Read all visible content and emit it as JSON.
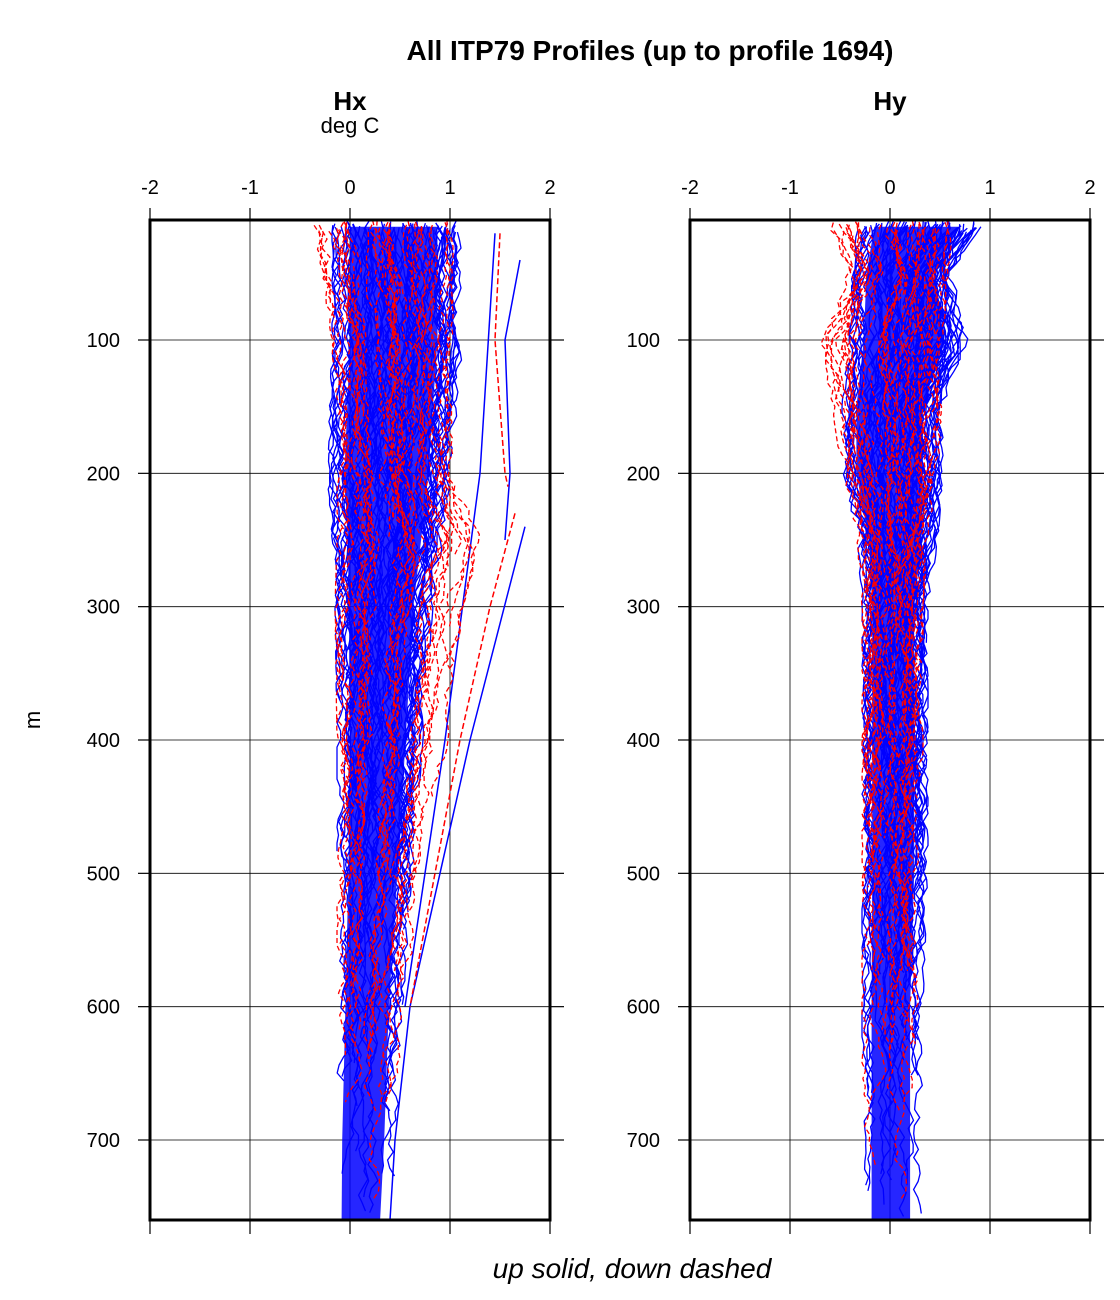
{
  "chart_data": {
    "type": "line",
    "title": "All ITP79 Profiles (up to profile 1694)",
    "ylabel": "m",
    "footer": "up solid, down dashed",
    "ylim": [
      760,
      10
    ],
    "y_reversed": true,
    "yticks": [
      100,
      200,
      300,
      400,
      500,
      600,
      700
    ],
    "xticks": [
      -2,
      -1,
      0,
      1,
      2
    ],
    "colors": {
      "up": "#0000ff",
      "down": "#ff0000"
    },
    "panels": [
      {
        "name": "Hx",
        "unit": "deg C",
        "xlim": [
          -2,
          2
        ],
        "series": [
          {
            "name": "up",
            "style": "solid",
            "color": "#0000ff",
            "envelope_depth": [
              15,
              100,
              200,
              250,
              300,
              400,
              500,
              600,
              700,
              760
            ],
            "envelope_min": [
              -0.15,
              -0.15,
              -0.2,
              -0.15,
              -0.12,
              -0.1,
              -0.1,
              -0.12,
              -0.15,
              -0.15
            ],
            "envelope_max": [
              1.1,
              1.1,
              1.0,
              0.9,
              0.8,
              0.7,
              0.6,
              0.5,
              0.45,
              0.4
            ],
            "outliers": [
              {
                "depth": [
                  240,
                  400,
                  500,
                  600,
                  700,
                  760
                ],
                "x": [
                  1.75,
                  1.2,
                  0.9,
                  0.6,
                  0.45,
                  0.4
                ]
              },
              {
                "depth": [
                  20,
                  200,
                  400,
                  600
                ],
                "x": [
                  1.45,
                  1.3,
                  0.95,
                  0.55
                ]
              },
              {
                "depth": [
                  40,
                  100,
                  200,
                  250
                ],
                "x": [
                  1.7,
                  1.55,
                  1.6,
                  1.55
                ]
              }
            ]
          },
          {
            "name": "down",
            "style": "dashed",
            "color": "#ff0000",
            "envelope_depth": [
              15,
              100,
              200,
              250,
              300,
              400,
              500,
              600,
              700,
              760
            ],
            "envelope_min": [
              -0.35,
              -0.15,
              -0.1,
              -0.1,
              -0.12,
              -0.1,
              -0.1,
              -0.1,
              -0.1,
              -0.1
            ],
            "envelope_max": [
              1.0,
              1.0,
              1.0,
              1.3,
              1.1,
              0.95,
              0.75,
              0.55,
              0.45,
              0.4
            ],
            "outliers": [
              {
                "depth": [
                  230,
                  300,
                  400,
                  500,
                  600
                ],
                "x": [
                  1.65,
                  1.4,
                  1.1,
                  0.85,
                  0.6
                ]
              },
              {
                "depth": [
                  20,
                  100,
                  200,
                  210
                ],
                "x": [
                  1.5,
                  1.45,
                  1.55,
                  1.58
                ]
              }
            ]
          }
        ]
      },
      {
        "name": "Hy",
        "unit": "",
        "xlim": [
          -2,
          2
        ],
        "series": [
          {
            "name": "up",
            "style": "solid",
            "color": "#0000ff",
            "envelope_depth": [
              15,
              50,
              100,
              150,
              200,
              250,
              300,
              400,
              500,
              600,
              700,
              760
            ],
            "envelope_min": [
              -0.3,
              -0.35,
              -0.4,
              -0.45,
              -0.45,
              -0.3,
              -0.25,
              -0.25,
              -0.25,
              -0.25,
              -0.25,
              -0.25
            ],
            "envelope_max": [
              0.9,
              0.6,
              0.75,
              0.5,
              0.5,
              0.45,
              0.35,
              0.35,
              0.35,
              0.3,
              0.3,
              0.3
            ],
            "outliers": []
          },
          {
            "name": "down",
            "style": "dashed",
            "color": "#ff0000",
            "envelope_depth": [
              15,
              50,
              100,
              150,
              200,
              250,
              300,
              400,
              500,
              600,
              700,
              760
            ],
            "envelope_min": [
              -0.6,
              -0.4,
              -0.7,
              -0.55,
              -0.45,
              -0.3,
              -0.25,
              -0.25,
              -0.25,
              -0.25,
              -0.25,
              -0.25
            ],
            "envelope_max": [
              0.6,
              0.55,
              0.5,
              0.5,
              0.45,
              0.35,
              0.3,
              0.3,
              0.3,
              0.3,
              0.3,
              0.3
            ],
            "outliers": []
          }
        ]
      }
    ]
  }
}
